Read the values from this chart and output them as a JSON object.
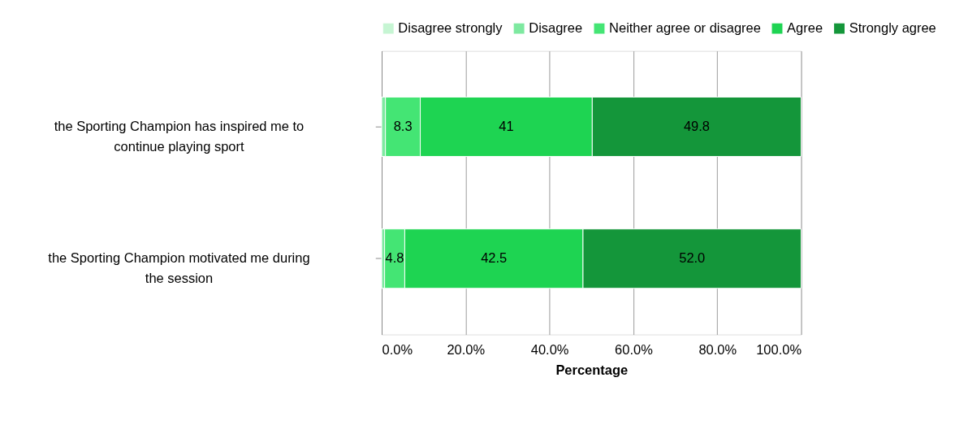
{
  "chart_data": {
    "type": "bar",
    "orientation": "horizontal",
    "stacked": true,
    "categories": [
      "the Sporting Champion has inspired me to continue playing sport",
      "the Sporting Champion motivated me during the session"
    ],
    "series": [
      {
        "name": "Disagree strongly",
        "color": "#c6f5d3",
        "values": [
          null,
          null
        ]
      },
      {
        "name": "Disagree",
        "color": "#7ee9a0",
        "values": [
          0.9,
          0.7
        ]
      },
      {
        "name": "Neither agree or disagree",
        "color": "#44e574",
        "values": [
          8.3,
          4.8
        ],
        "value_labels": [
          "8.3",
          "4.8"
        ]
      },
      {
        "name": "Agree",
        "color": "#1ed452",
        "values": [
          41,
          42.5
        ],
        "value_labels": [
          "41",
          "42.5"
        ]
      },
      {
        "name": "Strongly agree",
        "color": "#14963a",
        "values": [
          49.8,
          52.0
        ],
        "value_labels": [
          "49.8",
          "52.0"
        ]
      }
    ],
    "xlabel": "Percentage",
    "xlim": [
      0,
      100
    ],
    "xticks": [
      {
        "value": 0,
        "label": "0.0%"
      },
      {
        "value": 20,
        "label": "20.0%"
      },
      {
        "value": 40,
        "label": "40.0%"
      },
      {
        "value": 60,
        "label": "60.0%"
      },
      {
        "value": 80,
        "label": "80.0%"
      },
      {
        "value": 100,
        "label": "100.0%"
      }
    ],
    "grid": "x",
    "legend": "top"
  }
}
